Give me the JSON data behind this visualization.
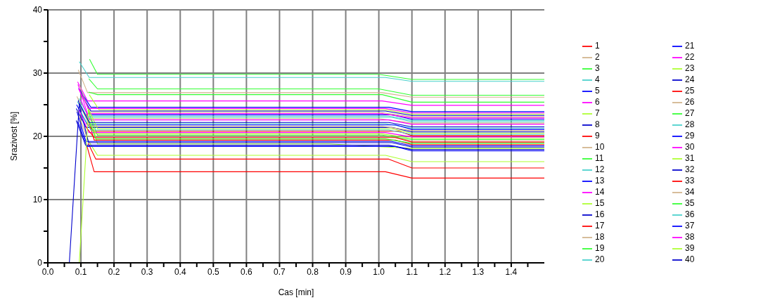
{
  "chart_data": {
    "type": "line",
    "xlabel": "Cas [min]",
    "ylabel": "Srazivost [%]",
    "xlim": [
      0,
      1.5
    ],
    "xticks": [
      {
        "value": 0,
        "label": "0.0"
      },
      {
        "value": 0.05,
        "label": null
      },
      {
        "value": 0.1,
        "label": "0.1"
      },
      {
        "value": 0.15,
        "label": null
      },
      {
        "value": 0.2,
        "label": "0.2"
      },
      {
        "value": 0.25,
        "label": null
      },
      {
        "value": 0.3,
        "label": "0.3"
      },
      {
        "value": 0.35,
        "label": null
      },
      {
        "value": 0.4,
        "label": "0.4"
      },
      {
        "value": 0.45,
        "label": null
      },
      {
        "value": 0.5,
        "label": "0.5"
      },
      {
        "value": 0.55,
        "label": null
      },
      {
        "value": 0.6,
        "label": "0.6"
      },
      {
        "value": 0.65,
        "label": null
      },
      {
        "value": 0.7,
        "label": "0.7"
      },
      {
        "value": 0.75,
        "label": null
      },
      {
        "value": 0.8,
        "label": "0.8"
      },
      {
        "value": 0.85,
        "label": null
      },
      {
        "value": 0.9,
        "label": "0.9"
      },
      {
        "value": 0.95,
        "label": null
      },
      {
        "value": 1.0,
        "label": "1.0"
      },
      {
        "value": 1.05,
        "label": null
      },
      {
        "value": 1.1,
        "label": "1.1"
      },
      {
        "value": 1.15,
        "label": null
      },
      {
        "value": 1.2,
        "label": "1.2"
      },
      {
        "value": 1.25,
        "label": null
      },
      {
        "value": 1.3,
        "label": "1.3"
      },
      {
        "value": 1.35,
        "label": null
      },
      {
        "value": 1.4,
        "label": "1.4"
      },
      {
        "value": 1.45,
        "label": null
      }
    ],
    "ylim": [
      0,
      40
    ],
    "yticks": [
      0,
      {
        "value": 5,
        "label": null
      },
      10,
      {
        "value": 15,
        "label": null
      },
      20,
      {
        "value": 25,
        "label": null
      },
      30,
      {
        "value": 35,
        "label": null
      },
      40
    ],
    "grid": true,
    "legend": "right",
    "marker": "none",
    "line_style": "solid",
    "series": [
      {
        "name": "1",
        "color": "#ff0000",
        "x": [
          0.118,
          0.14,
          1.02,
          1.1,
          1.5
        ],
        "values": [
          18.5,
          14.4,
          14.4,
          13.4,
          13.4
        ]
      },
      {
        "name": "2",
        "color": "#d2b48c",
        "x": [
          0.092,
          0.12,
          1.01,
          1.1,
          1.5
        ],
        "values": [
          30.5,
          26.9,
          26.9,
          26.2,
          26.2
        ]
      },
      {
        "name": "3",
        "color": "#33ff33",
        "x": [
          0.126,
          0.15,
          1.0,
          1.1,
          1.5
        ],
        "values": [
          32.2,
          29.8,
          29.8,
          29.0,
          29.0
        ]
      },
      {
        "name": "4",
        "color": "#48d1cc",
        "x": [
          0.095,
          0.125,
          1.02,
          1.1,
          1.5
        ],
        "values": [
          31.8,
          29.3,
          29.3,
          28.7,
          28.7
        ]
      },
      {
        "name": "5",
        "color": "#0000ff",
        "x": [
          0.093,
          0.13,
          1.03,
          1.1,
          1.5
        ],
        "values": [
          27.6,
          24.6,
          24.6,
          23.9,
          23.9
        ]
      },
      {
        "name": "6",
        "color": "#ff00ff",
        "x": [
          0.09,
          0.12,
          1.01,
          1.1,
          1.5
        ],
        "values": [
          28.6,
          25.6,
          25.6,
          24.9,
          24.9
        ]
      },
      {
        "name": "7",
        "color": "#adff2f",
        "x": [
          0.12,
          0.15,
          0.85,
          1.1,
          1.5
        ],
        "values": [
          24.6,
          18.8,
          18.8,
          18.1,
          18.1
        ]
      },
      {
        "name": "8",
        "color": "#0000cd",
        "x": [
          0.097,
          0.13,
          1.02,
          1.1,
          1.5
        ],
        "values": [
          27.1,
          24.0,
          24.0,
          23.3,
          23.3
        ]
      },
      {
        "name": "9",
        "color": "#ff0000",
        "x": [
          0.122,
          0.145,
          1.03,
          1.1,
          1.5
        ],
        "values": [
          18.9,
          16.4,
          16.4,
          15.0,
          15.0
        ]
      },
      {
        "name": "10",
        "color": "#d2b48c",
        "x": [
          0.088,
          0.118,
          1.0,
          1.1,
          1.5
        ],
        "values": [
          26.3,
          22.8,
          22.8,
          22.1,
          22.1
        ]
      },
      {
        "name": "11",
        "color": "#33ff33",
        "x": [
          0.124,
          0.15,
          1.0,
          1.1,
          1.5
        ],
        "values": [
          29.1,
          27.5,
          27.5,
          26.5,
          26.5
        ]
      },
      {
        "name": "12",
        "color": "#48d1cc",
        "x": [
          0.094,
          0.122,
          1.03,
          1.1,
          1.5
        ],
        "values": [
          26.0,
          23.2,
          23.2,
          22.5,
          22.5
        ]
      },
      {
        "name": "13",
        "color": "#0000ff",
        "x": [
          0.1,
          0.13,
          1.04,
          1.1,
          1.5
        ],
        "values": [
          27.3,
          23.4,
          23.4,
          22.7,
          22.7
        ]
      },
      {
        "name": "14",
        "color": "#ff00ff",
        "x": [
          0.091,
          0.12,
          1.01,
          1.1,
          1.5
        ],
        "values": [
          28.2,
          23.6,
          23.6,
          22.9,
          22.9
        ]
      },
      {
        "name": "15",
        "color": "#adff2f",
        "x": [
          0.119,
          0.15,
          1.02,
          1.1,
          1.5
        ],
        "values": [
          19.6,
          17.0,
          17.0,
          16.0,
          16.0
        ]
      },
      {
        "name": "16",
        "color": "#0000cd",
        "x": [
          0.086,
          0.116,
          1.04,
          1.1,
          1.5
        ],
        "values": [
          24.4,
          21.4,
          21.4,
          20.7,
          20.7
        ]
      },
      {
        "name": "17",
        "color": "#ff0000",
        "x": [
          0.117,
          0.14,
          1.05,
          1.1,
          1.5
        ],
        "values": [
          23.6,
          19.4,
          19.4,
          18.7,
          18.7
        ]
      },
      {
        "name": "18",
        "color": "#d2b48c",
        "x": [
          0.089,
          0.117,
          1.03,
          1.1,
          1.5
        ],
        "values": [
          24.0,
          20.0,
          20.0,
          19.3,
          19.3
        ]
      },
      {
        "name": "19",
        "color": "#33ff33",
        "x": [
          0.123,
          0.15,
          1.01,
          1.1,
          1.5
        ],
        "values": [
          27.0,
          26.6,
          26.6,
          25.4,
          25.4
        ]
      },
      {
        "name": "20",
        "color": "#48d1cc",
        "x": [
          0.098,
          0.128,
          1.02,
          1.1,
          1.5
        ],
        "values": [
          25.1,
          22.0,
          22.0,
          21.3,
          21.3
        ]
      },
      {
        "name": "21",
        "color": "#0000ff",
        "x": [
          0.087,
          0.12,
          1.05,
          1.1,
          1.5
        ],
        "values": [
          25.0,
          21.8,
          21.8,
          21.1,
          21.1
        ]
      },
      {
        "name": "22",
        "color": "#ff00ff",
        "x": [
          0.099,
          0.127,
          1.03,
          1.1,
          1.5
        ],
        "values": [
          25.8,
          22.6,
          22.6,
          21.9,
          21.9
        ]
      },
      {
        "name": "23",
        "color": "#adff2f",
        "x": [
          0.125,
          0.155,
          1.02,
          1.1,
          1.5
        ],
        "values": [
          26.6,
          24.2,
          24.2,
          23.5,
          23.5
        ]
      },
      {
        "name": "24",
        "color": "#0000cd",
        "x": [
          0.092,
          0.123,
          1.04,
          1.1,
          1.5
        ],
        "values": [
          25.7,
          19.0,
          19.0,
          18.3,
          18.3
        ]
      },
      {
        "name": "25",
        "color": "#ff0000",
        "x": [
          0.116,
          0.14,
          1.06,
          1.1,
          1.5
        ],
        "values": [
          22.1,
          20.8,
          20.8,
          20.1,
          20.1
        ]
      },
      {
        "name": "26",
        "color": "#d2b48c",
        "x": [
          0.096,
          0.126,
          1.0,
          1.1,
          1.5
        ],
        "values": [
          28.0,
          23.8,
          23.8,
          23.1,
          23.1
        ]
      },
      {
        "name": "27",
        "color": "#33ff33",
        "x": [
          0.121,
          0.15,
          1.01,
          1.1,
          1.5
        ],
        "values": [
          24.1,
          20.2,
          20.2,
          19.5,
          19.5
        ]
      },
      {
        "name": "28",
        "color": "#48d1cc",
        "x": [
          0.1,
          0.13,
          1.03,
          1.1,
          1.5
        ],
        "values": [
          23.8,
          21.0,
          21.0,
          20.3,
          20.3
        ]
      },
      {
        "name": "29",
        "color": "#0000ff",
        "x": [
          0.088,
          0.115,
          1.04,
          1.1,
          1.5
        ],
        "values": [
          23.9,
          19.2,
          19.2,
          18.5,
          18.5
        ]
      },
      {
        "name": "30",
        "color": "#ff00ff",
        "x": [
          0.094,
          0.124,
          1.02,
          1.1,
          1.5
        ],
        "values": [
          24.2,
          20.6,
          20.6,
          19.9,
          19.9
        ]
      },
      {
        "name": "31",
        "color": "#adff2f",
        "x": [
          0.118,
          0.145,
          1.01,
          1.1,
          1.5
        ],
        "values": [
          23.1,
          20.4,
          20.4,
          19.7,
          19.7
        ]
      },
      {
        "name": "32",
        "color": "#0000cd",
        "x": [
          0.086,
          0.114,
          1.03,
          1.1,
          1.5
        ],
        "values": [
          22.5,
          18.6,
          18.6,
          17.9,
          17.9
        ]
      },
      {
        "name": "33",
        "color": "#ff0000",
        "x": [
          0.115,
          0.14,
          1.05,
          1.1,
          1.5
        ],
        "values": [
          21.5,
          19.8,
          19.8,
          19.1,
          19.1
        ]
      },
      {
        "name": "34",
        "color": "#d2b48c",
        "x": [
          0.097,
          0.127,
          1.01,
          1.1,
          1.5
        ],
        "values": [
          24.9,
          21.6,
          21.6,
          20.9,
          20.9
        ]
      },
      {
        "name": "35",
        "color": "#33ff33",
        "x": [
          0.12,
          0.145,
          1.02,
          1.1,
          1.5
        ],
        "values": [
          23.0,
          19.6,
          19.6,
          18.9,
          18.9
        ]
      },
      {
        "name": "36",
        "color": "#48d1cc",
        "x": [
          0.089,
          0.12,
          1.04,
          1.1,
          1.5
        ],
        "values": [
          25.5,
          23.0,
          23.0,
          22.3,
          22.3
        ]
      },
      {
        "name": "37",
        "color": "#0000ff",
        "x": [
          0.091,
          0.118,
          1.05,
          1.1,
          1.5
        ],
        "values": [
          22.3,
          18.4,
          18.4,
          17.7,
          17.7
        ]
      },
      {
        "name": "38",
        "color": "#ff00ff",
        "x": [
          0.093,
          0.123,
          1.02,
          1.1,
          1.5
        ],
        "values": [
          27.5,
          24.4,
          24.4,
          23.7,
          23.7
        ]
      },
      {
        "name": "39",
        "color": "#adff2f",
        "x": [
          0.066,
          0.095,
          0.123,
          0.15,
          1.04,
          1.1,
          1.5
        ],
        "values": [
          0,
          0,
          24.3,
          21.2,
          21.2,
          20.5,
          20.5
        ]
      },
      {
        "name": "40",
        "color": "#0000cd",
        "x": [
          0,
          0.065,
          0.095,
          0.125,
          1.03,
          1.1,
          1.5
        ],
        "values": [
          0,
          0,
          25.2,
          22.2,
          22.2,
          21.5,
          21.5
        ]
      }
    ]
  }
}
